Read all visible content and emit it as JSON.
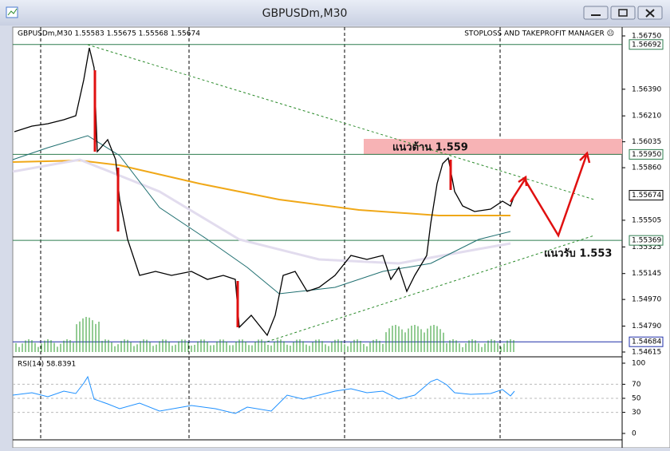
{
  "window": {
    "title": "GBPUSDm,M30"
  },
  "chart": {
    "header": "GBPUSDm,M30  1.55583 1.55675 1.55568 1.55674",
    "manager": "STOPLOSS AND TAKEPROFIT MANAGER ☹",
    "resistance": "แนวต้าน    1.559",
    "support": "แนวรับ 1.553",
    "price_ticks": [
      {
        "value": 1.5675,
        "label": "1.56750"
      },
      {
        "value": 1.5639,
        "label": "1.56390"
      },
      {
        "value": 1.5621,
        "label": "1.56210"
      },
      1.56035,
      {
        "value": 1.5586,
        "label": "1.55860"
      },
      1.55505,
      1.55325,
      1.55145,
      {
        "value": 1.5497,
        "label": "1.54970"
      },
      {
        "value": 1.5479,
        "label": "1.54790"
      },
      1.54615
    ],
    "price_levels": [
      {
        "value": 1.56692,
        "color": "#2e7d4f"
      },
      {
        "value": {
          "value": 1.5595,
          "label": "1.55950"
        },
        "color": "#2e7d4f"
      },
      {
        "value": 1.55674,
        "color": "#000000"
      },
      {
        "value": 1.55369,
        "color": "#2e7d4f"
      },
      {
        "value": 1.54684,
        "color": "#1f2fa8"
      }
    ],
    "rsi": {
      "label": "RSI(14) 58.8391",
      "ticks": [
        100,
        70,
        50,
        30,
        0
      ]
    }
  }
}
